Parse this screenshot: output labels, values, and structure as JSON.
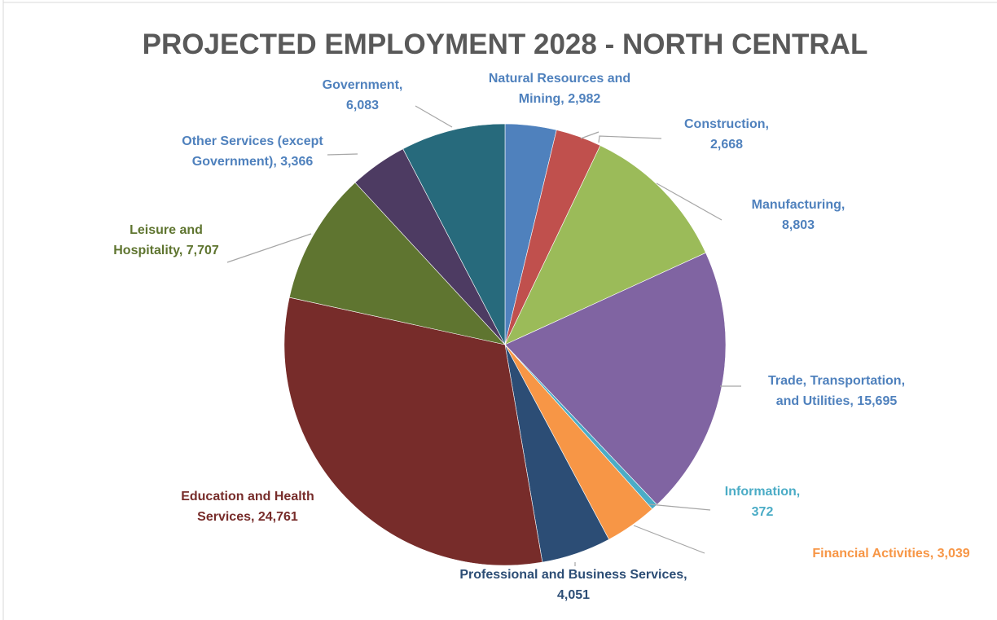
{
  "chart_data": {
    "type": "pie",
    "title": "PROJECTED EMPLOYMENT 2028 - NORTH CENTRAL",
    "slices": [
      {
        "label_lines": [
          "Natural Resources and",
          "Mining, 2,982"
        ],
        "name": "Natural Resources and Mining",
        "value": 2982,
        "color": "#4f81bd",
        "label_color": "#4f81bd"
      },
      {
        "label_lines": [
          "Construction,",
          "2,668"
        ],
        "name": "Construction",
        "value": 2668,
        "color": "#c0504d",
        "label_color": "#4f81bd"
      },
      {
        "label_lines": [
          "Manufacturing,",
          "8,803"
        ],
        "name": "Manufacturing",
        "value": 8803,
        "color": "#9bbb59",
        "label_color": "#4f81bd"
      },
      {
        "label_lines": [
          "Trade, Transportation,",
          "and Utilities, 15,695"
        ],
        "name": "Trade, Transportation, and Utilities",
        "value": 15695,
        "color": "#8064a2",
        "label_color": "#4f81bd"
      },
      {
        "label_lines": [
          "Information,",
          "372"
        ],
        "name": "Information",
        "value": 372,
        "color": "#4bacc6",
        "label_color": "#4bacc6"
      },
      {
        "label_lines": [
          "Financial Activities, 3,039"
        ],
        "name": "Financial Activities",
        "value": 3039,
        "color": "#f79646",
        "label_color": "#f79646"
      },
      {
        "label_lines": [
          "Professional and Business Services,",
          "4,051"
        ],
        "name": "Professional and Business Services",
        "value": 4051,
        "color": "#2c4d75",
        "label_color": "#2c4d75"
      },
      {
        "label_lines": [
          "Education and Health",
          "Services, 24,761"
        ],
        "name": "Education and Health Services",
        "value": 24761,
        "color": "#772c2a",
        "label_color": "#772c2a"
      },
      {
        "label_lines": [
          "Leisure and",
          "Hospitality, 7,707"
        ],
        "name": "Leisure and Hospitality",
        "value": 7707,
        "color": "#5f7530",
        "label_color": "#5f7530"
      },
      {
        "label_lines": [
          "Other Services (except",
          "Government), 3,366"
        ],
        "name": "Other Services (except Government)",
        "value": 3366,
        "color": "#4d3b62",
        "label_color": "#4f81bd"
      },
      {
        "label_lines": [
          "Government,",
          "6,083"
        ],
        "name": "Government",
        "value": 6083,
        "color": "#276a7c",
        "label_color": "#4f81bd"
      }
    ],
    "start_angle": "12 o'clock",
    "direction": "clockwise",
    "legend": "none",
    "data_labels": "outside-with-leader-lines"
  }
}
